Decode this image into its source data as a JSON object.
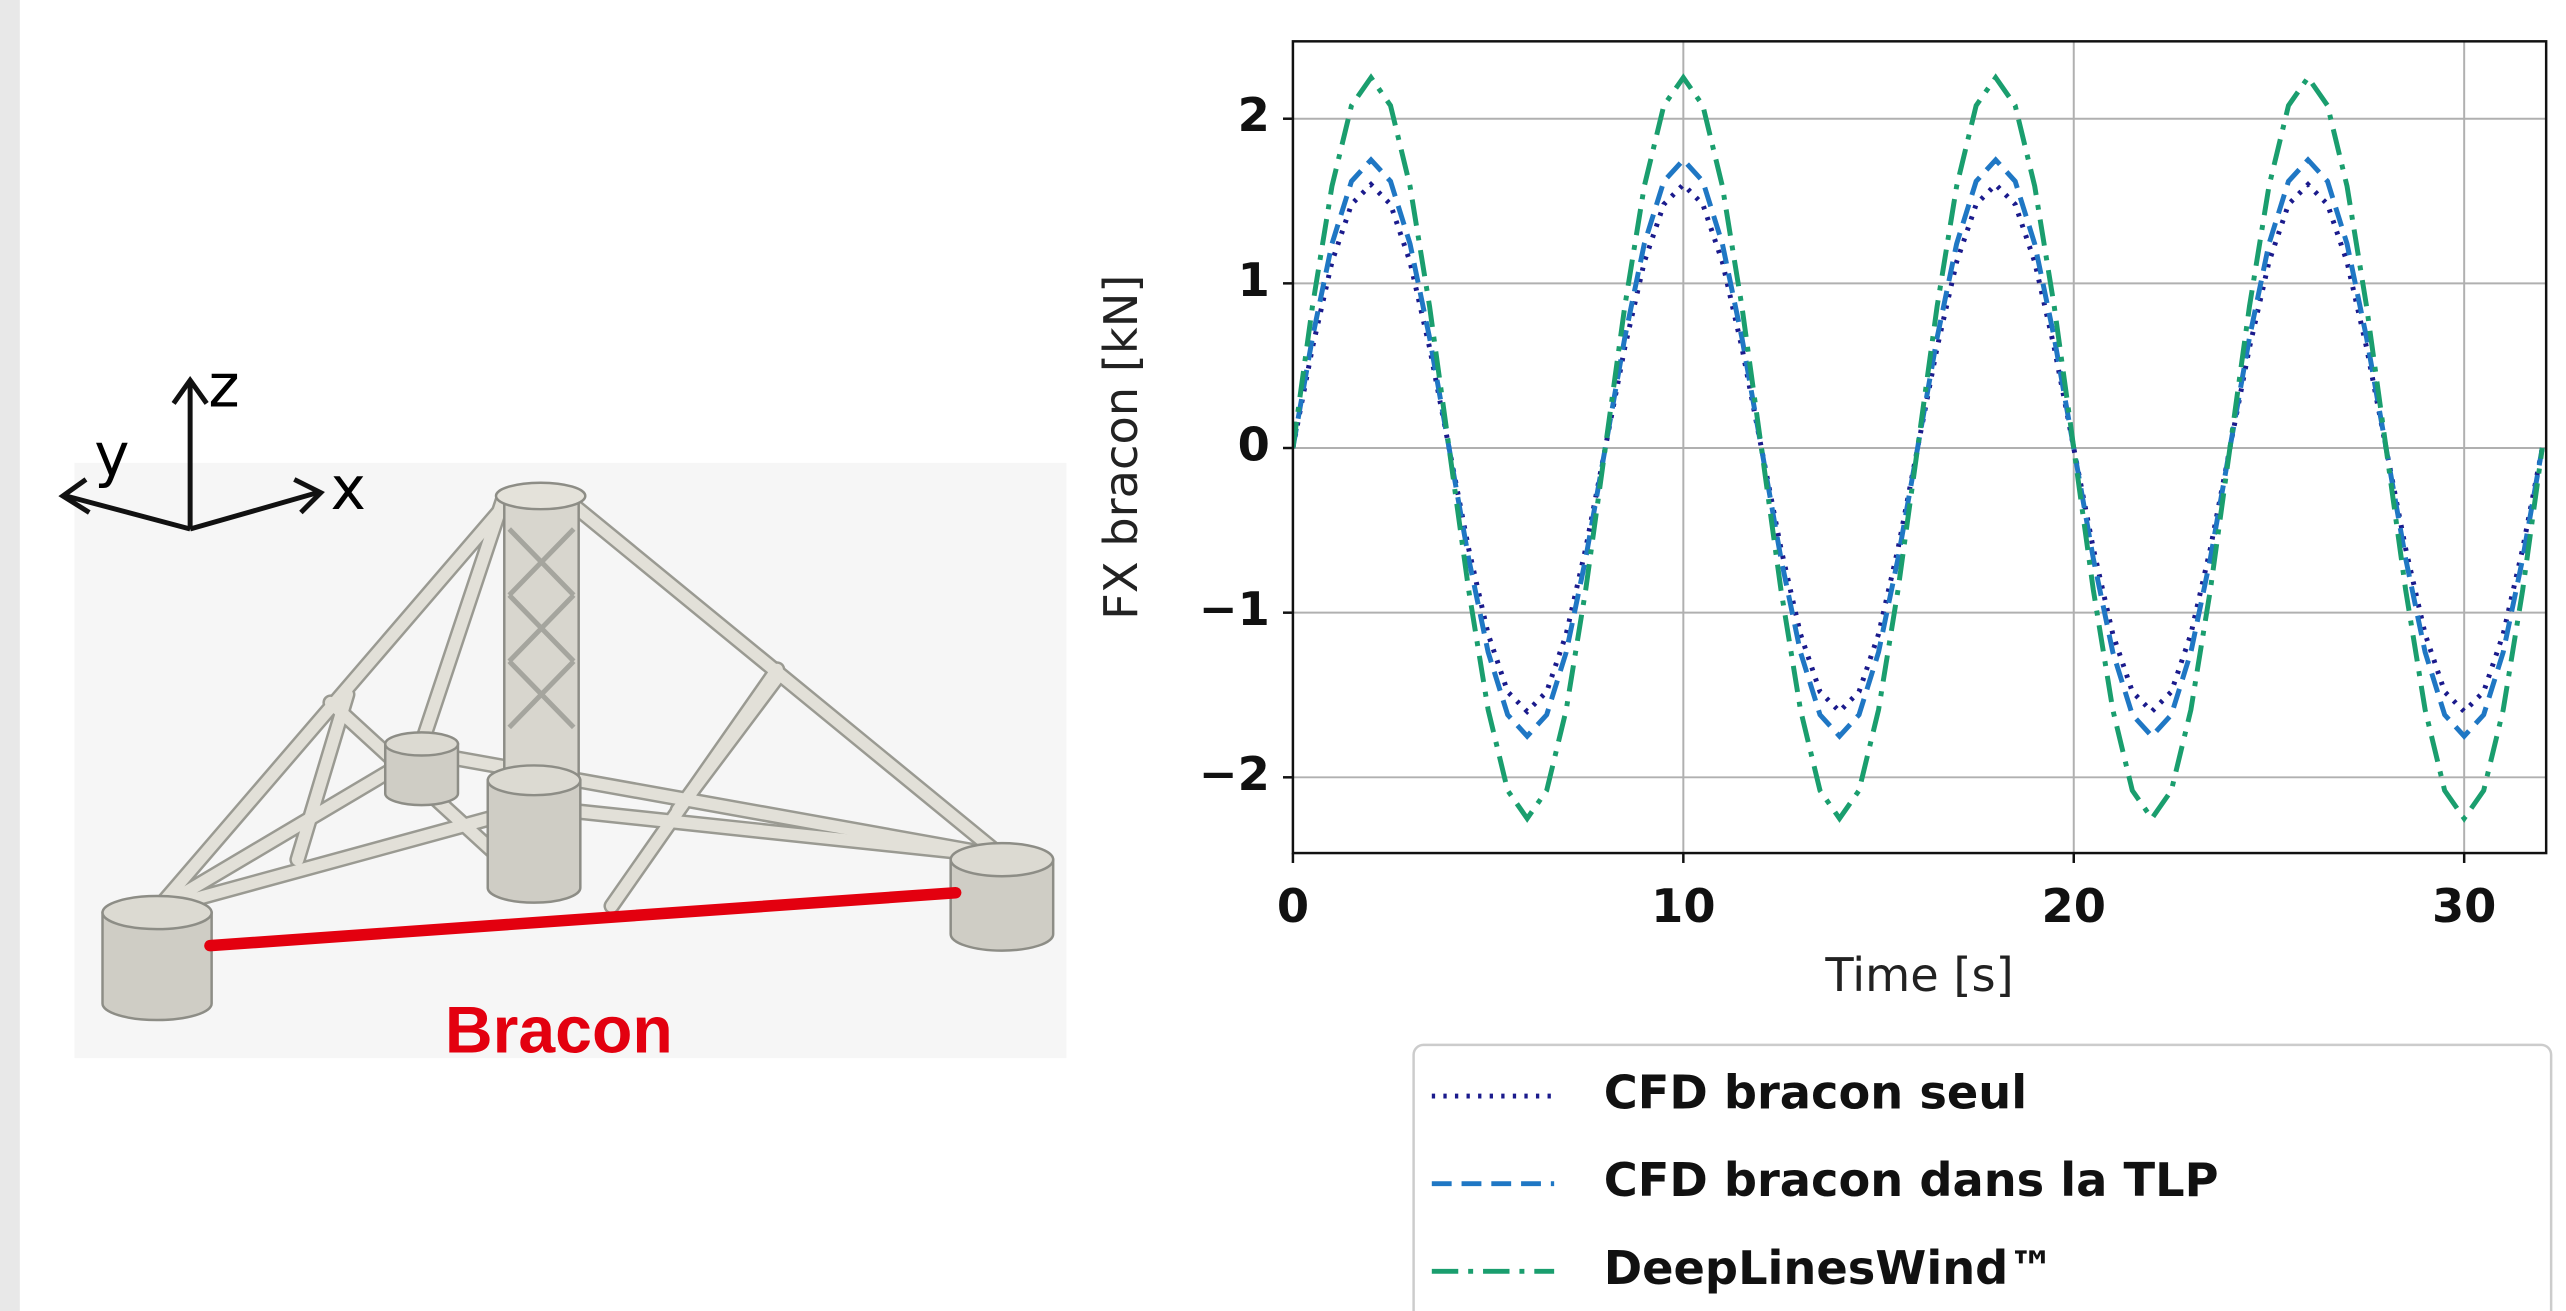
{
  "illustration": {
    "label": "Bracon",
    "axes": [
      "x",
      "y",
      "z"
    ]
  },
  "chart_data": {
    "type": "line",
    "x": [
      0,
      0.5,
      1,
      1.5,
      2,
      2.5,
      3,
      3.5,
      4,
      4.5,
      5,
      5.5,
      6,
      6.5,
      7,
      7.5,
      8,
      8.5,
      9,
      9.5,
      10,
      10.5,
      11,
      11.5,
      12,
      12.5,
      13,
      13.5,
      14,
      14.5,
      15,
      15.5,
      16,
      16.5,
      17,
      17.5,
      18,
      18.5,
      19,
      19.5,
      20,
      20.5,
      21,
      21.5,
      22,
      22.5,
      23,
      23.5,
      24,
      24.5,
      25,
      25.5,
      26,
      26.5,
      27,
      27.5,
      28,
      28.5,
      29,
      29.5,
      30,
      30.5,
      31,
      31.5,
      32
    ],
    "series": [
      {
        "name": "CFD bracon seul",
        "color": "#1a1a8c",
        "style": "dotted",
        "values": [
          0,
          0.61,
          1.13,
          1.48,
          1.6,
          1.48,
          1.13,
          0.61,
          0,
          -0.61,
          -1.13,
          -1.48,
          -1.6,
          -1.48,
          -1.13,
          -0.61,
          0,
          0.61,
          1.13,
          1.48,
          1.6,
          1.48,
          1.13,
          0.61,
          0,
          -0.61,
          -1.13,
          -1.48,
          -1.6,
          -1.48,
          -1.13,
          -0.61,
          0,
          0.61,
          1.13,
          1.48,
          1.6,
          1.48,
          1.13,
          0.61,
          0,
          -0.61,
          -1.13,
          -1.48,
          -1.6,
          -1.48,
          -1.13,
          -0.61,
          0,
          0.61,
          1.13,
          1.48,
          1.6,
          1.48,
          1.13,
          0.61,
          0,
          -0.61,
          -1.13,
          -1.48,
          -1.6,
          -1.48,
          -1.13,
          -0.61,
          0
        ]
      },
      {
        "name": "CFD bracon dans la TLP",
        "color": "#1f77c4",
        "style": "dashed",
        "values": [
          0,
          0.67,
          1.24,
          1.62,
          1.75,
          1.62,
          1.24,
          0.67,
          0,
          -0.67,
          -1.24,
          -1.62,
          -1.75,
          -1.62,
          -1.24,
          -0.67,
          0,
          0.67,
          1.24,
          1.62,
          1.75,
          1.62,
          1.24,
          0.67,
          0,
          -0.67,
          -1.24,
          -1.62,
          -1.75,
          -1.62,
          -1.24,
          -0.67,
          0,
          0.67,
          1.24,
          1.62,
          1.75,
          1.62,
          1.24,
          0.67,
          0,
          -0.67,
          -1.24,
          -1.62,
          -1.75,
          -1.62,
          -1.24,
          -0.67,
          0,
          0.67,
          1.24,
          1.62,
          1.75,
          1.62,
          1.24,
          0.67,
          0,
          -0.67,
          -1.24,
          -1.62,
          -1.75,
          -1.62,
          -1.24,
          -0.67,
          0
        ]
      },
      {
        "name": "DeepLinesWind™",
        "color": "#1a9e6e",
        "style": "dashdot",
        "values": [
          0,
          0.86,
          1.59,
          2.08,
          2.25,
          2.08,
          1.59,
          0.86,
          0,
          -0.86,
          -1.59,
          -2.08,
          -2.25,
          -2.08,
          -1.59,
          -0.86,
          0,
          0.86,
          1.59,
          2.08,
          2.25,
          2.08,
          1.59,
          0.86,
          0,
          -0.86,
          -1.59,
          -2.08,
          -2.25,
          -2.08,
          -1.59,
          -0.86,
          0,
          0.86,
          1.59,
          2.08,
          2.25,
          2.08,
          1.59,
          0.86,
          0,
          -0.86,
          -1.59,
          -2.08,
          -2.25,
          -2.08,
          -1.59,
          -0.86,
          0,
          0.86,
          1.59,
          2.08,
          2.25,
          2.08,
          1.59,
          0.86,
          0,
          -0.86,
          -1.59,
          -2.08,
          -2.25,
          -2.08,
          -1.59,
          -0.86,
          0
        ]
      }
    ],
    "x_label": "Time [s]",
    "y_label": "FX bracon [kN]",
    "xlim": [
      0,
      32.1
    ],
    "xticks": [
      0,
      10,
      20,
      30
    ],
    "ylim": [
      -2.46,
      2.47
    ],
    "yticks": [
      {
        "value": -2,
        "label": "−2"
      },
      {
        "value": -1,
        "label": "−1"
      },
      0,
      1,
      2
    ],
    "grid": true
  }
}
